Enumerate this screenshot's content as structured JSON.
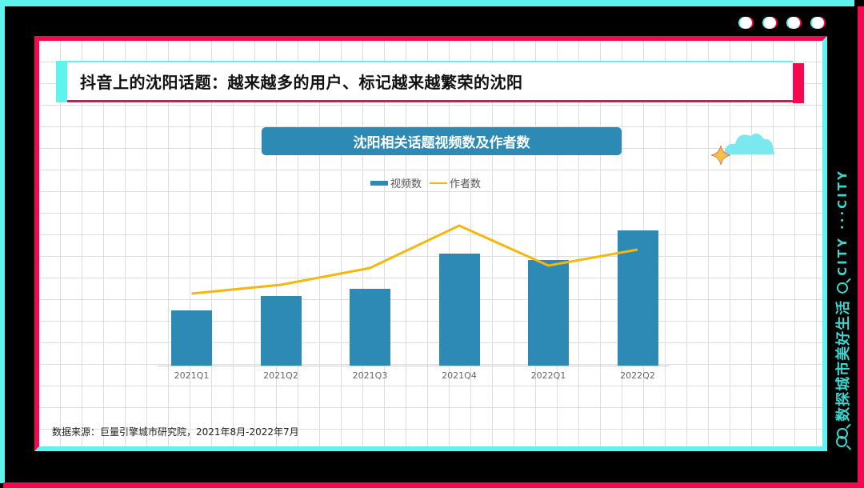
{
  "slide": {
    "title": "抖音上的沈阳话题：越来越多的用户、标记越来越繁荣的沈阳",
    "source": "数据来源：巨量引擎城市研究院，2021年8月-2022年7月",
    "side_text": "数探城市美好生活",
    "side_city": "CITY ···CITY",
    "colors": {
      "cyan": "#5ef3ef",
      "red": "#f5084f",
      "bar": "#2d8ab5",
      "line": "#f5b70c"
    }
  },
  "chart_data": {
    "type": "bar",
    "title": "沈阳相关话题视频数及作者数",
    "categories": [
      "2021Q1",
      "2021Q2",
      "2021Q3",
      "2021Q4",
      "2022Q1",
      "2022Q2"
    ],
    "series": [
      {
        "name": "视频数",
        "type": "bar",
        "values": [
          69,
          87,
          96,
          140,
          132,
          169
        ]
      },
      {
        "name": "作者数",
        "type": "line",
        "values": [
          90,
          101,
          122,
          175,
          125,
          145
        ]
      }
    ],
    "xlabel": "",
    "ylabel": "",
    "ylim": [
      0,
      200
    ],
    "note": "No y-axis or value labels shown; values are relative pixel heights",
    "legend_position": "top",
    "grid": false
  },
  "legend": {
    "bar_label": "视频数",
    "line_label": "作者数"
  }
}
